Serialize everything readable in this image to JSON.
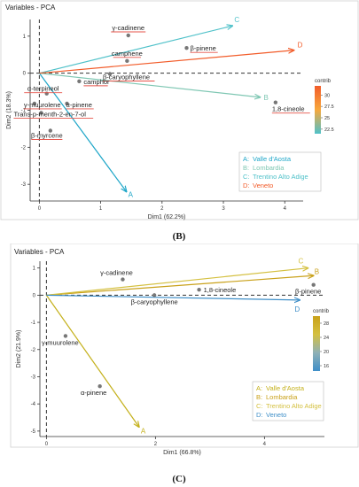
{
  "panel_labels": [
    "(B)",
    "(C)"
  ],
  "chart_data": [
    {
      "type": "scatter",
      "title": "Variables - PCA",
      "xlabel": "Dim1 (62.2%)",
      "ylabel": "Dim2 (18.3%)",
      "xlim": [
        -0.15,
        4.3
      ],
      "ylim": [
        -3.45,
        1.45
      ],
      "xticks": [
        0,
        1,
        2,
        3,
        4
      ],
      "yticks": [
        1,
        0,
        -1,
        -2,
        -3
      ],
      "arrows": [
        {
          "key": "A",
          "x": 1.42,
          "y": -3.2,
          "color": "#1ea6c8"
        },
        {
          "key": "B",
          "x": 3.6,
          "y": -0.65,
          "color": "#7fc7b3"
        },
        {
          "key": "C",
          "x": 3.15,
          "y": 1.28,
          "color": "#4fc1c9"
        },
        {
          "key": "D",
          "x": 4.15,
          "y": 0.62,
          "color": "#f25c2a"
        }
      ],
      "points": [
        {
          "label": "γ-cadinene",
          "x": 1.45,
          "y": 1.02
        },
        {
          "label": "β-pinene",
          "x": 2.4,
          "y": 0.68
        },
        {
          "label": "camphene",
          "x": 1.43,
          "y": 0.33
        },
        {
          "label": "β-caryophyllene",
          "x": 1.15,
          "y": -0.02
        },
        {
          "label": "camphor",
          "x": 0.65,
          "y": -0.22
        },
        {
          "label": "1,8-cineole",
          "x": 3.85,
          "y": -0.79
        },
        {
          "label": "α-terpineol",
          "x": 0.12,
          "y": -0.55
        },
        {
          "label": "γ-muurolene",
          "x": -0.08,
          "y": -0.82
        },
        {
          "label": "α-pinene",
          "x": 0.45,
          "y": -0.82
        },
        {
          "label": "Trans-p-menth-2-en-7-ol",
          "x": 0.03,
          "y": -1.07
        },
        {
          "label": "β-myrcene",
          "x": 0.18,
          "y": -1.55
        }
      ],
      "legend_entries": [
        {
          "key": "A:",
          "name": "Valle d'Aosta"
        },
        {
          "key": "B:",
          "name": "Lombardia"
        },
        {
          "key": "C:",
          "name": "Trentino Alto Adige"
        },
        {
          "key": "D:",
          "name": "Veneto"
        }
      ],
      "colorbar": {
        "title": "contrib",
        "ticks": [
          30.0,
          27.5,
          25.0,
          22.5
        ],
        "range": [
          21.5,
          32.0
        ],
        "colors": [
          "#f25c2a",
          "#f7a83c",
          "#4fc1c9"
        ]
      },
      "grid": false
    },
    {
      "type": "scatter",
      "title": "Variables - PCA",
      "xlabel": "Dim1 (66.8%)",
      "ylabel": "Dim2 (21.9%)",
      "xlim": [
        -0.12,
        5.1
      ],
      "ylim": [
        -5.2,
        1.25
      ],
      "xticks": [
        0,
        2,
        4
      ],
      "yticks": [
        1,
        0,
        -1,
        -2,
        -3,
        -4,
        -5
      ],
      "arrows": [
        {
          "key": "A",
          "x": 1.7,
          "y": -4.85,
          "color": "#c4b01a"
        },
        {
          "key": "B",
          "x": 4.9,
          "y": 0.72,
          "color": "#c9a11a"
        },
        {
          "key": "C",
          "x": 4.8,
          "y": 1.0,
          "color": "#d4c040"
        },
        {
          "key": "D",
          "x": 4.65,
          "y": -0.18,
          "color": "#3f8fc8"
        }
      ],
      "points": [
        {
          "label": "γ-cadinene",
          "x": 1.4,
          "y": 0.58
        },
        {
          "label": "1,8-cineole",
          "x": 2.8,
          "y": 0.2
        },
        {
          "label": "β-pinene",
          "x": 4.9,
          "y": 0.38
        },
        {
          "label": "β-caryophyllene",
          "x": 1.98,
          "y": 0.0
        },
        {
          "label": "γ-muurolene",
          "x": 0.35,
          "y": -1.5
        },
        {
          "label": "α-pinene",
          "x": 0.98,
          "y": -3.35
        }
      ],
      "legend_entries": [
        {
          "key": "A:",
          "name": "Valle d'Aosta"
        },
        {
          "key": "B:",
          "name": "Lombardia"
        },
        {
          "key": "C:",
          "name": "Trentino Alto Adige"
        },
        {
          "key": "D:",
          "name": "Veneto"
        }
      ],
      "colorbar": {
        "title": "contrib",
        "ticks": [
          28,
          24,
          20,
          16
        ],
        "range": [
          14.5,
          30.0
        ],
        "colors": [
          "#c9a11a",
          "#d4c040",
          "#8fb1b6",
          "#3f8fc8"
        ]
      },
      "grid": false
    }
  ]
}
